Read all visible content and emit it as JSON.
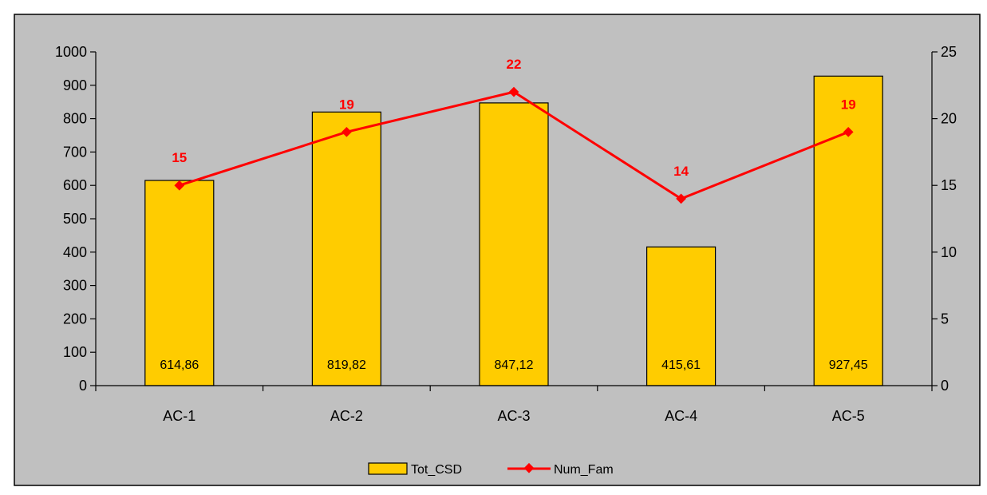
{
  "chart_data": {
    "type": "bar",
    "categories": [
      "AC-1",
      "AC-2",
      "AC-3",
      "AC-4",
      "AC-5"
    ],
    "series": [
      {
        "name": "Tot_CSD",
        "type": "bar",
        "axis": "left",
        "values": [
          614.86,
          819.82,
          847.12,
          415.61,
          927.45
        ],
        "labels": [
          "614,86",
          "819,82",
          "847,12",
          "415,61",
          "927,45"
        ],
        "color": "#FFCC00"
      },
      {
        "name": "Num_Fam",
        "type": "line",
        "axis": "right",
        "values": [
          15,
          19,
          22,
          14,
          19
        ],
        "labels": [
          "15",
          "19",
          "22",
          "14",
          "19"
        ],
        "color": "#FF0000"
      }
    ],
    "y_left": {
      "min": 0,
      "max": 1000,
      "step": 100,
      "ticks": [
        "0",
        "100",
        "200",
        "300",
        "400",
        "500",
        "600",
        "700",
        "800",
        "900",
        "1000"
      ]
    },
    "y_right": {
      "min": 0,
      "max": 25,
      "step": 5,
      "ticks": [
        "0",
        "5",
        "10",
        "15",
        "20",
        "25"
      ]
    },
    "title": "",
    "xlabel": "",
    "ylabel": "",
    "grid": false,
    "legend_position": "bottom",
    "plot_background": "#C0C0C0",
    "bar_border_color": "#000000"
  }
}
